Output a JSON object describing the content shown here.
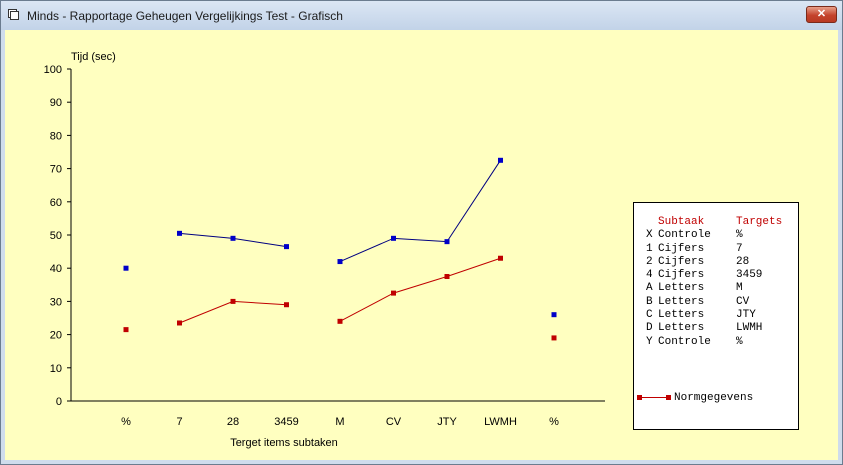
{
  "window": {
    "title": "Minds - Rapportage Geheugen Vergelijkings Test - Grafisch",
    "close_label": "✕"
  },
  "colors": {
    "background": "#ffffc0",
    "series_blue": "#0000c8",
    "series_red": "#c00000"
  },
  "legend": {
    "headers": [
      "Subtaak",
      "Targets"
    ],
    "rows": [
      {
        "code": "X",
        "name": "Controle",
        "target": "%"
      },
      {
        "code": "1",
        "name": "Cijfers",
        "target": "7"
      },
      {
        "code": "2",
        "name": "Cijfers",
        "target": "28"
      },
      {
        "code": "4",
        "name": "Cijfers",
        "target": "3459"
      },
      {
        "code": "A",
        "name": "Letters",
        "target": "M"
      },
      {
        "code": "B",
        "name": "Letters",
        "target": "CV"
      },
      {
        "code": "C",
        "name": "Letters",
        "target": "JTY"
      },
      {
        "code": "D",
        "name": "Letters",
        "target": "LWMH"
      },
      {
        "code": "Y",
        "name": "Controle",
        "target": "%"
      }
    ],
    "norm_label": "Normgegevens"
  },
  "chart_data": {
    "type": "line",
    "ylabel": "Tijd (sec)",
    "xlabel": "Terget items subtaken",
    "ylim": [
      0,
      100
    ],
    "yticks": [
      0,
      10,
      20,
      30,
      40,
      50,
      60,
      70,
      80,
      90,
      100
    ],
    "categories": [
      "%",
      "7",
      "28",
      "3459",
      "M",
      "CV",
      "JTY",
      "LWMH",
      "%"
    ],
    "series": [
      {
        "color": "#0000c8",
        "values": [
          40,
          50.5,
          49,
          46.5,
          42,
          49,
          48,
          72.5,
          26
        ],
        "segments": [
          [
            1,
            3
          ],
          [
            4,
            7
          ]
        ]
      },
      {
        "name": "Normgegevens",
        "color": "#c00000",
        "values": [
          21.5,
          23.5,
          30,
          29,
          24,
          32.5,
          37.5,
          43,
          19
        ],
        "segments": [
          [
            1,
            3
          ],
          [
            4,
            7
          ]
        ]
      }
    ]
  }
}
